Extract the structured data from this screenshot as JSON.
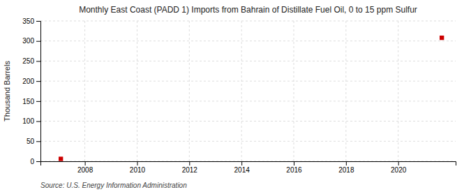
{
  "chart_data": {
    "type": "scatter",
    "title": "Monthly East Coast (PADD 1) Imports from Bahrain of Distillate Fuel Oil, 0 to 15 ppm Sulfur",
    "ylabel": "Thousand Barrels",
    "source": "Source: U.S. Energy Information Administration",
    "x": [
      2007.08,
      2021.67
    ],
    "values": [
      6,
      308
    ],
    "color": "#cc0000",
    "marker": "square",
    "xlim": [
      2006.3,
      2022.2
    ],
    "ylim": [
      0,
      350
    ],
    "xticks": [
      2008,
      2010,
      2012,
      2014,
      2016,
      2018,
      2020
    ],
    "yticks": [
      0,
      50,
      100,
      150,
      200,
      250,
      300,
      350
    ],
    "grid": true
  }
}
